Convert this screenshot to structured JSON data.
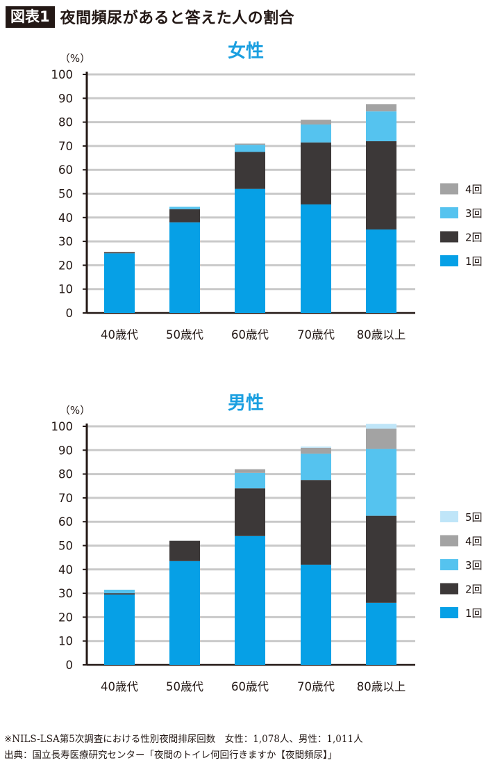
{
  "header": {
    "badge": "図表1",
    "title": "夜間頻尿があると答えた人の割合"
  },
  "colors": {
    "1回": "#06a0e6",
    "2回": "#3c3838",
    "3回": "#55c3ef",
    "4回": "#a3a3a3",
    "5回": "#bfe5f8",
    "accent": "#1a9fe0"
  },
  "chart_data": [
    {
      "type": "bar",
      "stacked": true,
      "title": "女性",
      "unit_label": "（%）",
      "ylim": [
        0,
        100
      ],
      "yticks": [
        0,
        10,
        20,
        30,
        40,
        50,
        60,
        70,
        80,
        90,
        100
      ],
      "grid": true,
      "legend_position": "right",
      "categories": [
        "40歳代",
        "50歳代",
        "60歳代",
        "70歳代",
        "80歳以上"
      ],
      "series": [
        {
          "name": "1回",
          "values": [
            25,
            38,
            52,
            45.5,
            35
          ]
        },
        {
          "name": "2回",
          "values": [
            0.5,
            5.5,
            15.5,
            26,
            37
          ]
        },
        {
          "name": "3回",
          "values": [
            0,
            1,
            3,
            7.5,
            12.5
          ]
        },
        {
          "name": "4回",
          "values": [
            0,
            0,
            0.5,
            2,
            3
          ]
        }
      ]
    },
    {
      "type": "bar",
      "stacked": true,
      "title": "男性",
      "unit_label": "（%）",
      "ylim": [
        0,
        100
      ],
      "yticks": [
        0,
        10,
        20,
        30,
        40,
        50,
        60,
        70,
        80,
        90,
        100
      ],
      "grid": true,
      "legend_position": "right",
      "categories": [
        "40歳代",
        "50歳代",
        "60歳代",
        "70歳代",
        "80歳以上"
      ],
      "series": [
        {
          "name": "1回",
          "values": [
            29.5,
            43.5,
            54,
            42,
            26
          ]
        },
        {
          "name": "2回",
          "values": [
            0.5,
            8.5,
            20,
            35.5,
            36.5
          ]
        },
        {
          "name": "3回",
          "values": [
            1.5,
            0,
            6.5,
            11,
            28
          ]
        },
        {
          "name": "4回",
          "values": [
            0,
            0,
            1.5,
            2.5,
            8.5
          ]
        },
        {
          "name": "5回",
          "values": [
            0,
            0,
            0,
            0.5,
            2
          ]
        }
      ]
    }
  ],
  "footnotes": [
    "※NILS-LSA第5次調査における性別夜間排尿回数　女性：1,078人、男性：1,011人",
    "出典：国立長寿医療研究センター「夜間のトイレ何回行きますか【夜間頻尿】」"
  ]
}
